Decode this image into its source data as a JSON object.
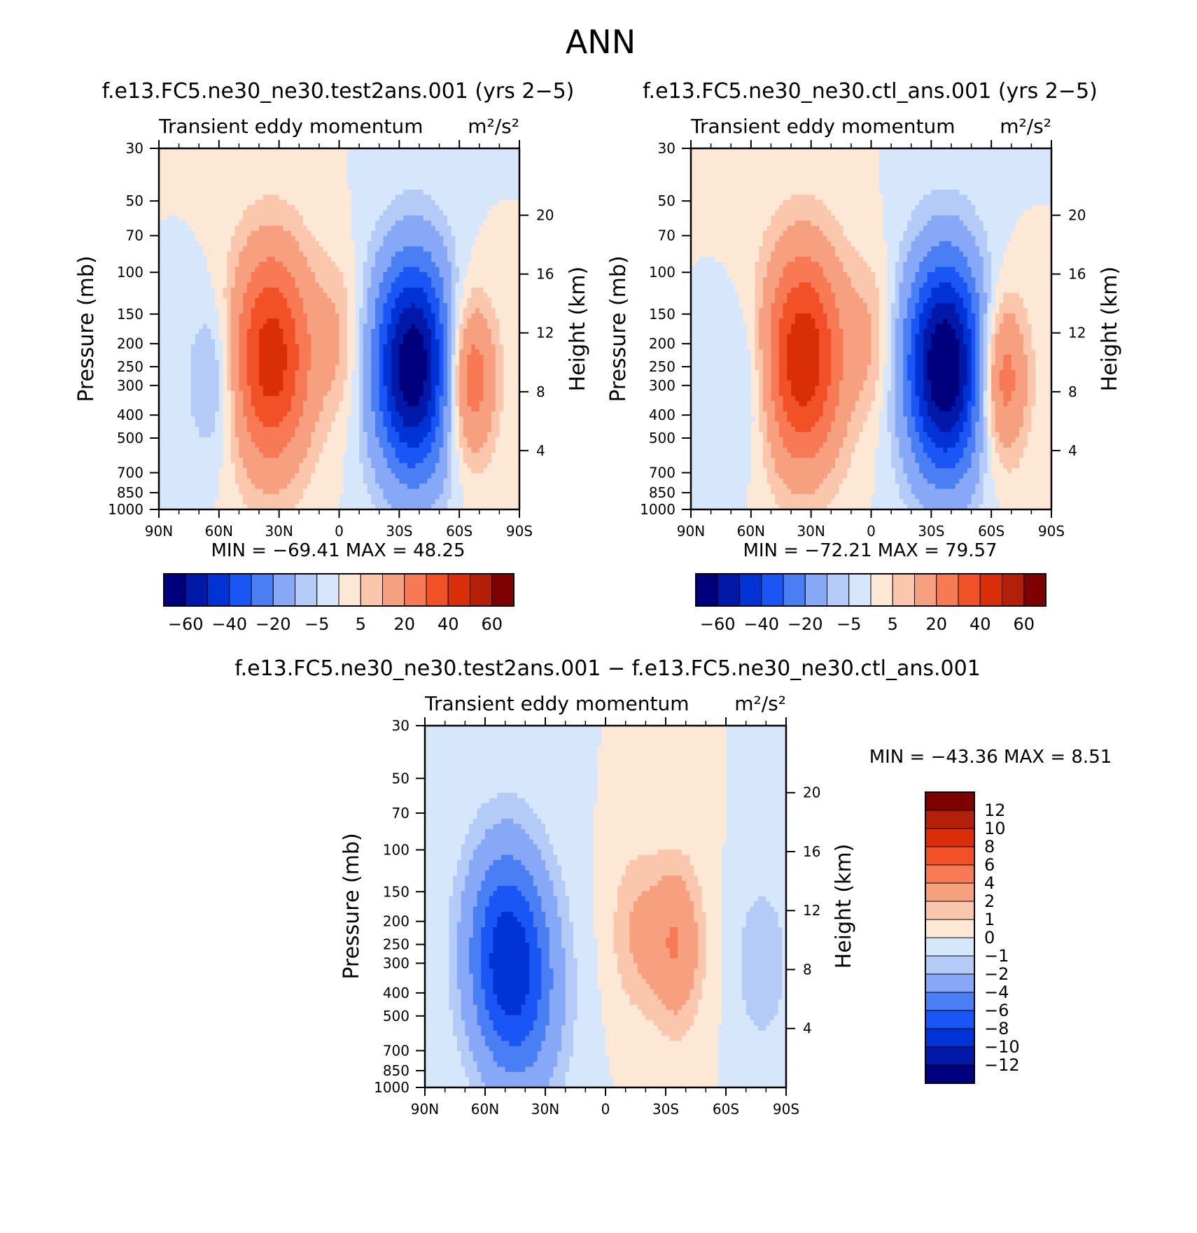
{
  "figure": {
    "title": "ANN"
  },
  "colors": {
    "diverging16": [
      "#00007f",
      "#0019a8",
      "#0033d5",
      "#1a55f5",
      "#4a7ef5",
      "#87a8f6",
      "#b4cbf8",
      "#d7e7fb",
      "#fde8d6",
      "#fac7ad",
      "#f7a07f",
      "#f77a55",
      "#f25027",
      "#da2e09",
      "#b31f09",
      "#7f0000"
    ],
    "diff14": [
      "#00007f",
      "#0019a8",
      "#0033d5",
      "#1a55f5",
      "#4a7ef5",
      "#87a8f6",
      "#b4cbf8",
      "#d7e7fb",
      "#fde8d6",
      "#fac7ad",
      "#f7a07f",
      "#f77a55",
      "#f25027",
      "#da2e09",
      "#b31f09",
      "#7f0000"
    ]
  },
  "chart_data": [
    {
      "type": "heatmap",
      "title": "f.e13.FC5.ne30_ne30.test2ans.001 (yrs 2−5)",
      "subtitle": "Transient eddy momentum",
      "units": "m²/s²",
      "ylabel": "Pressure (mb)",
      "ylabel_right": "Height (km)",
      "x_ticks": [
        "90N",
        "60N",
        "30N",
        "0",
        "30S",
        "60S",
        "90S"
      ],
      "y_ticks": [
        "30",
        "50",
        "70",
        "100",
        "150",
        "200",
        "250",
        "300",
        "400",
        "500",
        "700",
        "850",
        "1000"
      ],
      "height_ticks": [
        "20",
        "16",
        "12",
        "8",
        "4"
      ],
      "min_max": "MIN = −69.41   MAX =  48.25",
      "levels": [
        -70,
        -60,
        -50,
        -40,
        -30,
        -20,
        -10,
        -5,
        0,
        5,
        10,
        20,
        30,
        40,
        50,
        60,
        70
      ],
      "colorbar_labels": [
        "−60",
        "−40",
        "−20",
        "−5",
        "5",
        "20",
        "40",
        "60"
      ],
      "features": [
        {
          "lat": 34,
          "p": 230,
          "value": 46
        },
        {
          "lat": -37,
          "p": 250,
          "value": -69
        },
        {
          "lat": -65,
          "p": 280,
          "value": 32
        },
        {
          "lat": 63,
          "p": 280,
          "value": -13
        },
        {
          "lat": 0,
          "p": 190,
          "value": 10
        }
      ]
    },
    {
      "type": "heatmap",
      "title": "f.e13.FC5.ne30_ne30.ctl_ans.001 (yrs 2−5)",
      "subtitle": "Transient eddy momentum",
      "units": "m²/s²",
      "ylabel": "Pressure (mb)",
      "ylabel_right": "Height (km)",
      "x_ticks": [
        "90N",
        "60N",
        "30N",
        "0",
        "30S",
        "60S",
        "90S"
      ],
      "y_ticks": [
        "30",
        "50",
        "70",
        "100",
        "150",
        "200",
        "250",
        "300",
        "400",
        "500",
        "700",
        "850",
        "1000"
      ],
      "height_ticks": [
        "20",
        "16",
        "12",
        "8",
        "4"
      ],
      "min_max": "MIN = −72.21   MAX =  79.57",
      "levels": [
        -70,
        -60,
        -50,
        -40,
        -30,
        -20,
        -10,
        -5,
        0,
        5,
        10,
        20,
        30,
        40,
        50,
        60,
        70
      ],
      "colorbar_labels": [
        "−60",
        "−40",
        "−20",
        "−5",
        "5",
        "20",
        "40",
        "60"
      ],
      "features": [
        {
          "lat": 34,
          "p": 230,
          "value": 48
        },
        {
          "lat": -37,
          "p": 250,
          "value": -72
        },
        {
          "lat": -65,
          "p": 280,
          "value": 30
        },
        {
          "lat": 62,
          "p": 300,
          "value": -9
        },
        {
          "lat": 0,
          "p": 190,
          "value": 10
        }
      ]
    },
    {
      "type": "heatmap",
      "title": "f.e13.FC5.ne30_ne30.test2ans.001 − f.e13.FC5.ne30_ne30.ctl_ans.001",
      "subtitle": "Transient eddy momentum",
      "units": "m²/s²",
      "ylabel": "Pressure (mb)",
      "ylabel_right": "Height (km)",
      "x_ticks": [
        "90N",
        "60N",
        "30N",
        "0",
        "30S",
        "60S",
        "90S"
      ],
      "y_ticks": [
        "30",
        "50",
        "70",
        "100",
        "150",
        "200",
        "250",
        "300",
        "400",
        "500",
        "700",
        "850",
        "1000"
      ],
      "height_ticks": [
        "20",
        "16",
        "12",
        "8",
        "4"
      ],
      "min_max": "MIN = −43.36   MAX =     8.51",
      "levels": [
        -14,
        -12,
        -10,
        -8,
        -6,
        -4,
        -2,
        -1,
        0,
        1,
        2,
        4,
        6,
        8,
        10,
        12,
        14
      ],
      "colorbar_labels": [
        "12",
        "10",
        "8",
        "6",
        "4",
        "2",
        "1",
        "0",
        "−1",
        "−2",
        "−4",
        "−6",
        "−8",
        "−10",
        "−12"
      ],
      "features": [
        {
          "lat": 50,
          "p": 270,
          "value": -8
        },
        {
          "lat": 38,
          "p": 450,
          "value": -3
        },
        {
          "lat": -35,
          "p": 250,
          "value": 4
        },
        {
          "lat": -15,
          "p": 220,
          "value": 2
        },
        {
          "lat": -78,
          "p": 300,
          "value": -2
        }
      ]
    }
  ]
}
